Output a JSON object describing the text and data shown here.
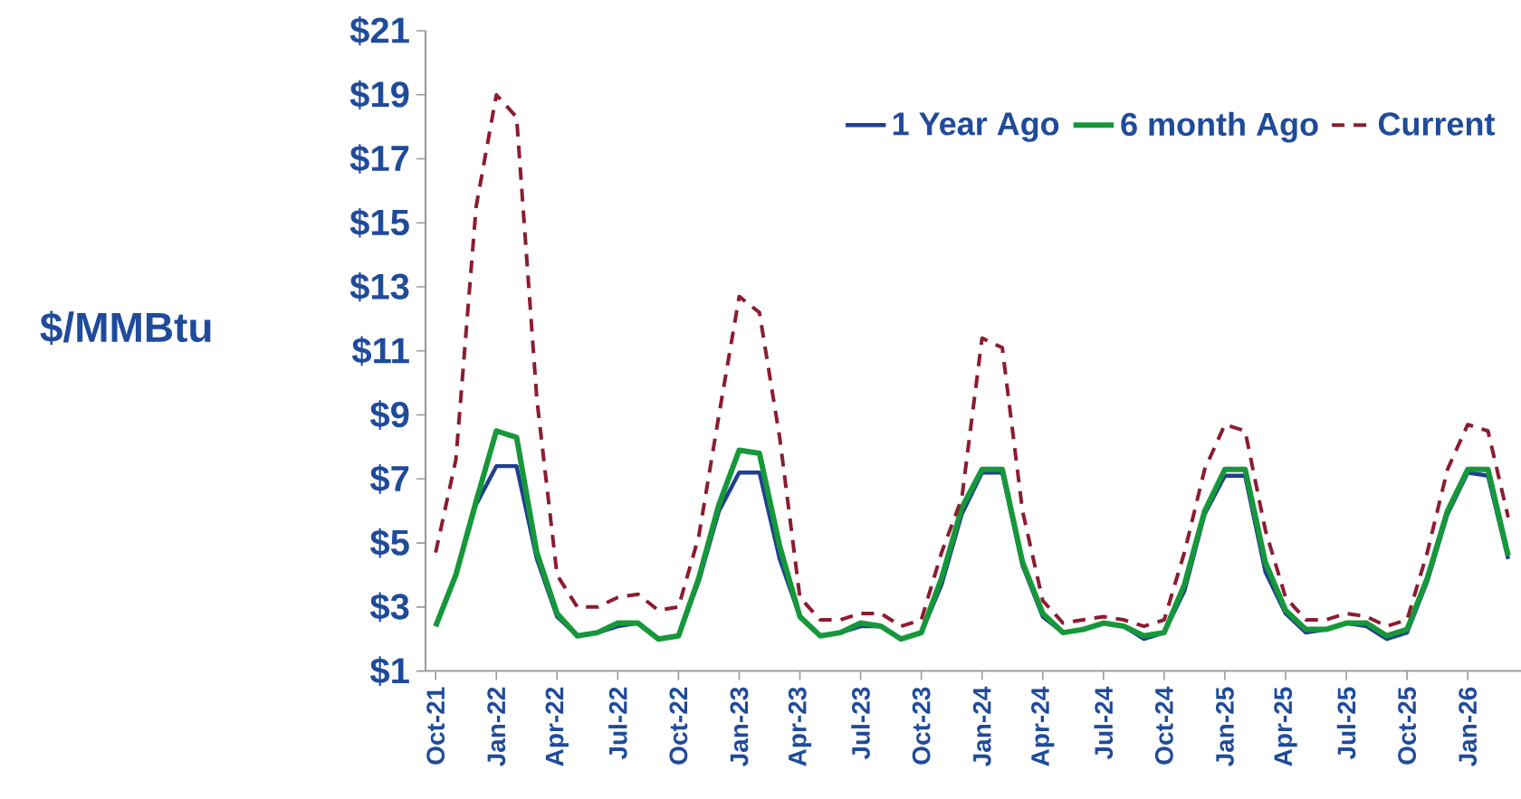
{
  "chart_data": {
    "type": "line",
    "ylabel": "$/MMBtu",
    "x": [
      "2021-10",
      "2021-11",
      "2021-12",
      "2022-01",
      "2022-02",
      "2022-03",
      "2022-04",
      "2022-05",
      "2022-06",
      "2022-07",
      "2022-08",
      "2022-09",
      "2022-10",
      "2022-11",
      "2022-12",
      "2023-01",
      "2023-02",
      "2023-03",
      "2023-04",
      "2023-05",
      "2023-06",
      "2023-07",
      "2023-08",
      "2023-09",
      "2023-10",
      "2023-11",
      "2023-12",
      "2024-01",
      "2024-02",
      "2024-03",
      "2024-04",
      "2024-05",
      "2024-06",
      "2024-07",
      "2024-08",
      "2024-09",
      "2024-10",
      "2024-11",
      "2024-12",
      "2025-01",
      "2025-02",
      "2025-03",
      "2025-04",
      "2025-05",
      "2025-06",
      "2025-07",
      "2025-08",
      "2025-09",
      "2025-10",
      "2025-11",
      "2025-12",
      "2026-01",
      "2026-02",
      "2026-03"
    ],
    "series": [
      {
        "name": "1 Year Ago",
        "color": "#1f3f8f",
        "line_style": "solid",
        "values": [
          2.4,
          4.0,
          6.2,
          7.4,
          7.4,
          4.5,
          2.7,
          2.1,
          2.2,
          2.4,
          2.5,
          2.0,
          2.1,
          3.8,
          6.0,
          7.2,
          7.2,
          4.5,
          2.7,
          2.1,
          2.2,
          2.4,
          2.4,
          2.0,
          2.2,
          3.7,
          5.9,
          7.2,
          7.2,
          4.3,
          2.7,
          2.2,
          2.3,
          2.5,
          2.4,
          2.0,
          2.2,
          3.5,
          5.9,
          7.1,
          7.1,
          4.1,
          2.8,
          2.2,
          2.3,
          2.5,
          2.4,
          2.0,
          2.2,
          3.8,
          5.9,
          7.2,
          7.1,
          4.5
        ]
      },
      {
        "name": "6 month Ago",
        "color": "#16983a",
        "line_style": "solid",
        "values": [
          2.4,
          4.0,
          6.3,
          8.5,
          8.3,
          4.7,
          2.8,
          2.1,
          2.2,
          2.5,
          2.5,
          2.0,
          2.1,
          3.9,
          6.2,
          7.9,
          7.8,
          4.9,
          2.7,
          2.1,
          2.2,
          2.5,
          2.4,
          2.0,
          2.2,
          3.9,
          6.1,
          7.3,
          7.3,
          4.4,
          2.8,
          2.2,
          2.3,
          2.5,
          2.4,
          2.1,
          2.2,
          3.7,
          6.0,
          7.3,
          7.3,
          4.4,
          2.9,
          2.3,
          2.3,
          2.5,
          2.5,
          2.1,
          2.3,
          3.9,
          6.0,
          7.3,
          7.3,
          4.6
        ]
      },
      {
        "name": "Current",
        "color": "#8c1c30",
        "line_style": "dashed",
        "values": [
          4.7,
          7.6,
          15.5,
          19.0,
          18.3,
          9.5,
          4.0,
          3.0,
          3.0,
          3.3,
          3.4,
          2.9,
          3.0,
          5.2,
          9.0,
          12.7,
          12.2,
          8.3,
          3.3,
          2.6,
          2.6,
          2.8,
          2.8,
          2.4,
          2.6,
          4.7,
          6.4,
          11.4,
          11.1,
          6.0,
          3.2,
          2.5,
          2.6,
          2.7,
          2.6,
          2.4,
          2.6,
          4.7,
          7.3,
          8.7,
          8.5,
          5.4,
          3.3,
          2.6,
          2.6,
          2.8,
          2.7,
          2.4,
          2.6,
          4.7,
          7.3,
          8.7,
          8.5,
          5.8
        ]
      }
    ],
    "xlim": [
      "2021-09-16",
      "2026-03-20"
    ],
    "xticks": [
      {
        "value": "2021-10",
        "label": "Oct-21"
      },
      {
        "value": "2022-01",
        "label": "Jan-22"
      },
      {
        "value": "2022-04",
        "label": "Apr-22"
      },
      {
        "value": "2022-07",
        "label": "Jul-22"
      },
      {
        "value": "2022-10",
        "label": "Oct-22"
      },
      {
        "value": "2023-01",
        "label": "Jan-23"
      },
      {
        "value": "2023-04",
        "label": "Apr-23"
      },
      {
        "value": "2023-07",
        "label": "Jul-23"
      },
      {
        "value": "2023-10",
        "label": "Oct-23"
      },
      {
        "value": "2024-01",
        "label": "Jan-24"
      },
      {
        "value": "2024-04",
        "label": "Apr-24"
      },
      {
        "value": "2024-07",
        "label": "Jul-24"
      },
      {
        "value": "2024-10",
        "label": "Oct-24"
      },
      {
        "value": "2025-01",
        "label": "Jan-25"
      },
      {
        "value": "2025-04",
        "label": "Apr-25"
      },
      {
        "value": "2025-07",
        "label": "Jul-25"
      },
      {
        "value": "2025-10",
        "label": "Oct-25"
      },
      {
        "value": "2026-01",
        "label": "Jan-26"
      }
    ],
    "ylim": [
      1,
      21
    ],
    "yticks": [
      {
        "value": 1,
        "label": "$1"
      },
      {
        "value": 3,
        "label": "$3"
      },
      {
        "value": 5,
        "label": "$5"
      },
      {
        "value": 7,
        "label": "$7"
      },
      {
        "value": 9,
        "label": "$9"
      },
      {
        "value": 11,
        "label": "$11"
      },
      {
        "value": 13,
        "label": "$13"
      },
      {
        "value": 15,
        "label": "$15"
      },
      {
        "value": 17,
        "label": "$17"
      },
      {
        "value": 19,
        "label": "$19"
      },
      {
        "value": 21,
        "label": "$21"
      }
    ],
    "legend": "top right",
    "marker": "none",
    "grid": false
  }
}
